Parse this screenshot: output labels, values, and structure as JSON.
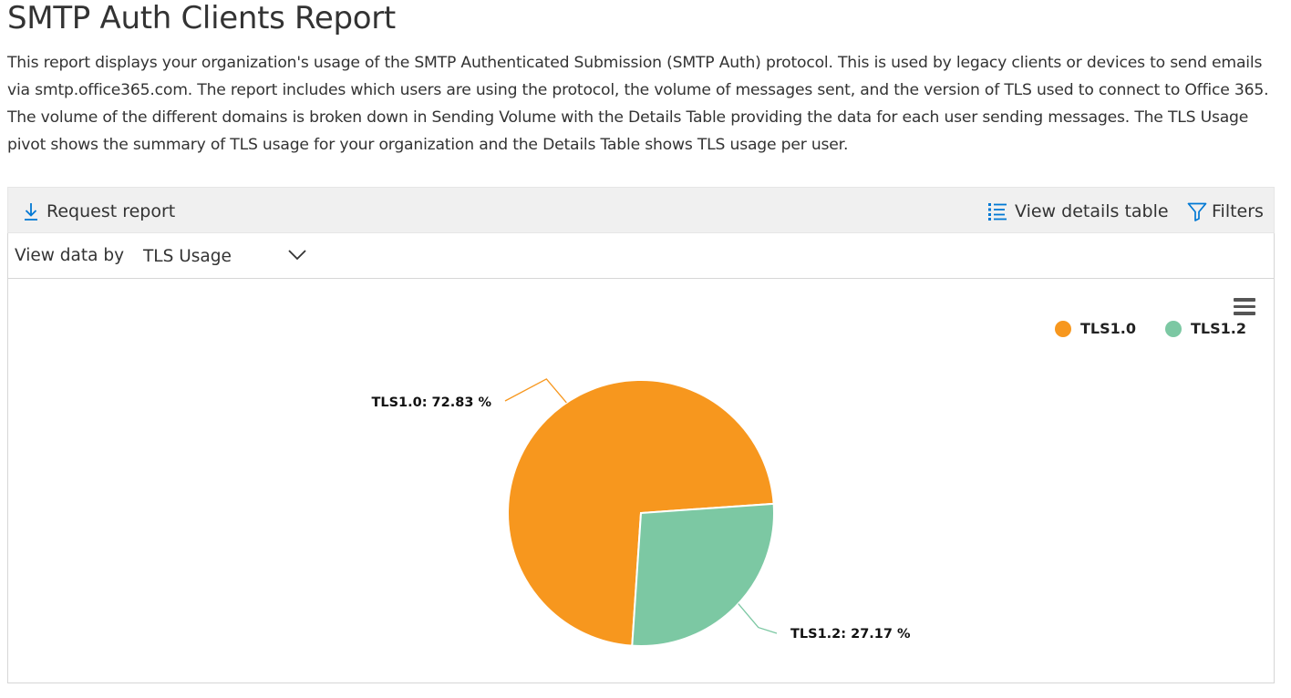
{
  "header": {
    "title": "SMTP Auth Clients Report",
    "description": "This report displays your organization's usage of the SMTP Authenticated Submission (SMTP Auth) protocol. This is used by legacy clients or devices to send emails via smtp.office365.com. The report includes which users are using the protocol, the volume of messages sent, and the version of TLS used to connect to Office 365. The volume of the different domains is broken down in Sending Volume with the Details Table providing the data for each user sending messages. The TLS Usage pivot shows the summary of TLS usage for your organization and the Details Table shows TLS usage per user."
  },
  "toolbar": {
    "request_label": "Request report",
    "request_icon": "download-icon",
    "details_label": "View details table",
    "details_icon": "list-icon",
    "filters_label": "Filters",
    "filters_icon": "filter-icon",
    "accent": "#0078d4"
  },
  "view_by": {
    "label": "View data by",
    "selected": "TLS Usage"
  },
  "colors": {
    "tls10": "#f7971e",
    "tls12": "#7cc8a3"
  },
  "chart_data": {
    "type": "pie",
    "title": "",
    "legend_position": "top-right",
    "series": [
      {
        "name": "TLS1.0",
        "value": 72.83,
        "label": "TLS1.0: 72.83 %",
        "color": "#f7971e"
      },
      {
        "name": "TLS1.2",
        "value": 27.17,
        "label": "TLS1.2: 27.17 %",
        "color": "#7cc8a3"
      }
    ]
  }
}
